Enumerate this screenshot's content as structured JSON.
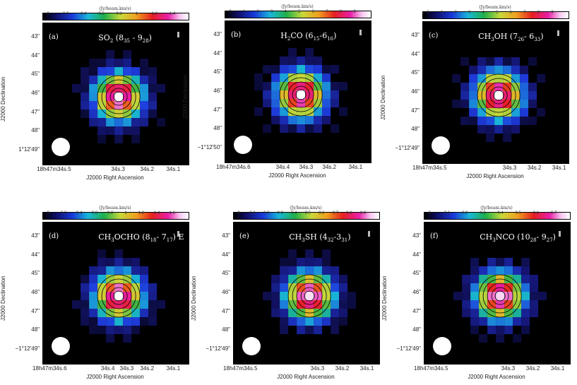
{
  "panels": [
    {
      "letter": "(a)",
      "molecule": "SO",
      "sub1": "2",
      "mid": " (8",
      "sub2": "35",
      "dash": " - 9",
      "sub3": "28",
      "tail": ")",
      "cbar_title": "(Jy/beam.km/s)",
      "cbar_ticks": [
        "0",
        "0.2",
        "0.4",
        "0.6",
        "0.8",
        "1",
        "1.2",
        "1.4"
      ],
      "y_ticks": [
        "43\"",
        "44\"",
        "45\"",
        "46\"",
        "47\"",
        "48\"",
        "1°12′49\""
      ],
      "x_ticks": [
        "18h47m34s.5",
        "34s.3",
        "34s.2",
        "34s.1"
      ],
      "xlabel": "J2000 Right Ascension",
      "ylabel": "J2000 Declination"
    },
    {
      "letter": "(b)",
      "molecule": "H",
      "sub1": "2",
      "mid": "CO (6",
      "sub2": "15",
      "dash": "-6",
      "sub3": "16",
      "tail": ")",
      "cbar_title": "(Jy/beam.km/s)",
      "cbar_ticks": [
        "0",
        "1",
        "2",
        "3",
        "4",
        "5",
        "6",
        "7",
        "8",
        "9"
      ],
      "y_ticks": [
        "43\"",
        "44\"",
        "45\"",
        "46\"",
        "47\"",
        "48\"",
        "−1°12′50\""
      ],
      "x_ticks": [
        "18h47m34s.6",
        "34s.4",
        "34s.3",
        "34s.2",
        "34s.1"
      ],
      "xlabel": "J2000 Right Ascension",
      "ylabel": "J2000 Declination"
    },
    {
      "letter": "(c)",
      "molecule": "CH",
      "sub1": "3",
      "mid": "OH (7",
      "sub2": "26",
      "dash": "- 6",
      "sub3": "33",
      "tail": ")",
      "cbar_title": "(Jy/beam.km/s)",
      "cbar_ticks": [
        "0",
        "1",
        "2",
        "3",
        "4",
        "5",
        "6",
        "7",
        "8",
        "9"
      ],
      "y_ticks": [
        "43\"",
        "44\"",
        "45\"",
        "46\"",
        "47\"",
        "48\"",
        "−1°12′49\""
      ],
      "x_ticks": [
        "18h47m34s.5",
        "34s.3",
        "34s.2",
        "34s.1"
      ],
      "xlabel": "J2000 Right Ascension",
      "ylabel": "J2000 Declination"
    },
    {
      "letter": "(d)",
      "molecule": "CH",
      "sub1": "3",
      "mid": "OCHO (8",
      "sub2": "18",
      "dash": "- 7",
      "sub3": "17",
      "tail": ") E",
      "cbar_title": "(Jy/beam.km/s)",
      "cbar_ticks": [
        "0",
        "0.2",
        "0.4",
        "0.6",
        "0.8",
        "1",
        "1.2",
        "1.4",
        "1.6"
      ],
      "y_ticks": [
        "43\"",
        "44\"",
        "45\"",
        "46\"",
        "47\"",
        "48\"",
        "−1°12′49\""
      ],
      "x_ticks": [
        "18h47m34s.6",
        "34s.4",
        "34s.3",
        "34s.2",
        "34s.1"
      ],
      "xlabel": "J2000 Right Ascension",
      "ylabel": "J2000 Declination"
    },
    {
      "letter": "(e)",
      "molecule": "CH",
      "sub1": "3",
      "mid": "SH (4",
      "sub2": "32",
      "dash": "-3",
      "sub3": "31",
      "tail": ")",
      "cbar_title": "(Jy/beam.km/s)",
      "cbar_ticks": [
        "0",
        "0.1",
        "0.2",
        "0.3",
        "0.4",
        "0.5",
        "0.6",
        "0.7",
        "0.8",
        "0.9"
      ],
      "y_ticks": [
        "43\"",
        "44\"",
        "45\"",
        "46\"",
        "47\"",
        "48\"",
        "−1°12′49\""
      ],
      "x_ticks": [
        "18h47m34s.5",
        "34s.3",
        "34s.2",
        "34s.1"
      ],
      "xlabel": "J2000 Right Ascension",
      "ylabel": "J2000 Declination"
    },
    {
      "letter": "(f)",
      "molecule": "CH",
      "sub1": "3",
      "mid": "NCO (10",
      "sub2": "28",
      "dash": "- 9",
      "sub3": "27",
      "tail": ")",
      "cbar_title": "(Jy/beam.km/s)",
      "cbar_ticks": [
        "0",
        "0.1",
        "0.2",
        "0.3",
        "0.4",
        "0.5",
        "0.6",
        "0.7"
      ],
      "y_ticks": [
        "43\"",
        "44\"",
        "45\"",
        "46\"",
        "47\"",
        "48\"",
        "−1°12′49\""
      ],
      "x_ticks": [
        "18h47m34s.5",
        "34s.3",
        "34s.2",
        "34s.1"
      ],
      "xlabel": "J2000 Right Ascension",
      "ylabel": "J2000 Declination"
    }
  ]
}
